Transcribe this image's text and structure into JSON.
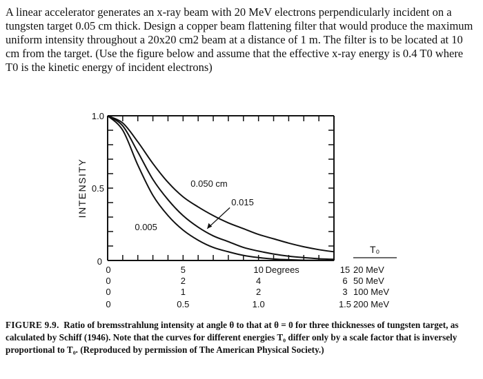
{
  "question_text": "A linear accelerator generates an x-ray beam with 20 MeV electrons perpendicularly incident on a tungsten target 0.05 cm thick. Design a copper beam flattening filter that would produce the maximum uniform intensity throughout a 20x20 cm2 beam at a distance of 1 m. The filter is to be located at 10 cm from the target. (Use the figure below and assume that the effective x-ray energy is 0.4 T0 where T0 is the kinetic energy of incident electrons)",
  "caption": {
    "label": "FIGURE 9.9.",
    "text": "Ratio of bremsstrahlung intensity at angle θ to that at θ = 0 for three thicknesses of tungsten target, as calculated by Schiff (1946). Note that the curves for different energies T₀ differ only by a scale factor that is inversely proportional to T₀. (Reproduced by permission of The American Physical Society.)"
  },
  "chart_data": {
    "type": "line",
    "ylabel": "INTENSITY",
    "y_ticks": [
      "1.0",
      "0.5",
      "0"
    ],
    "ylim": [
      0,
      1.0
    ],
    "xlim": [
      0,
      15
    ],
    "x_axis_unit": "Degrees",
    "x_scales": [
      {
        "energy": "20 MeV",
        "ticks": [
          "0",
          "5",
          "10",
          "15"
        ]
      },
      {
        "energy": "50 MeV",
        "ticks": [
          "0",
          "2",
          "4",
          "6"
        ]
      },
      {
        "energy": "100 MeV",
        "ticks": [
          "0",
          "1",
          "2",
          "3"
        ]
      },
      {
        "energy": "200 MeV",
        "ticks": [
          "0",
          "0.5",
          "1.0",
          "1.5"
        ]
      }
    ],
    "energy_header": "T₀",
    "series": [
      {
        "name": "0.050 cm",
        "x": [
          0,
          1,
          2,
          3,
          4,
          5,
          6,
          7,
          8,
          9,
          10,
          11,
          12,
          13,
          14,
          15
        ],
        "values": [
          1.0,
          0.95,
          0.82,
          0.67,
          0.54,
          0.44,
          0.37,
          0.31,
          0.26,
          0.22,
          0.18,
          0.15,
          0.12,
          0.095,
          0.075,
          0.06
        ]
      },
      {
        "name": "0.015",
        "x": [
          0,
          1,
          2,
          3,
          4,
          5,
          6,
          7,
          8,
          9,
          10,
          11,
          12,
          13,
          14,
          15
        ],
        "values": [
          1.0,
          0.93,
          0.75,
          0.56,
          0.42,
          0.31,
          0.23,
          0.17,
          0.13,
          0.09,
          0.065,
          0.045,
          0.03,
          0.02,
          0.012,
          0.008
        ]
      },
      {
        "name": "0.005",
        "x": [
          0,
          1,
          2,
          3,
          4,
          5,
          6,
          7,
          8,
          9,
          10,
          11,
          12,
          13,
          14,
          15
        ],
        "values": [
          1.0,
          0.9,
          0.66,
          0.45,
          0.31,
          0.21,
          0.14,
          0.09,
          0.06,
          0.035,
          0.02,
          0.01,
          0.005,
          0.002,
          0.001,
          0.0
        ]
      }
    ]
  }
}
